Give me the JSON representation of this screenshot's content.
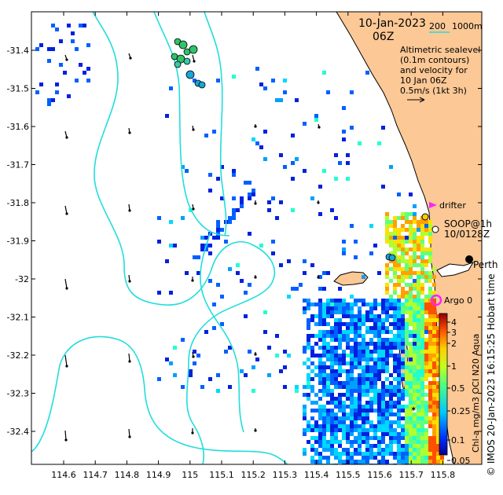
{
  "header": {
    "date": "10-Jan-2023",
    "hour": "06Z",
    "depth_contour_label": "200",
    "depth_contour_label_2": "1000m"
  },
  "legend_text": {
    "line1": "Altimetric sealevel",
    "line2": "(0.1m contours)",
    "line3": "and velocity for",
    "line4": "10 Jan 06Z",
    "line5": "0.5m/s (1kt 3h)"
  },
  "markers": {
    "drifter_label": "drifter",
    "float_label_1": "SOOP@1h",
    "float_label_2": "10/0128Z",
    "perth_label": "Perth",
    "argo_label": "Argo 0"
  },
  "colorbar": {
    "label": "Chl-a mg/m3 OCI N20 Aqua",
    "ticks": [
      "4",
      "3",
      "2",
      "1",
      "0.5",
      "0.25",
      "0.1",
      "0.05"
    ]
  },
  "credit": "© IMOS 20-Jan-2023 16:15:25 Hobart time",
  "axes": {
    "lat_ticks": [
      "-31.4",
      "-31.5",
      "-31.6",
      "-31.7",
      "-31.8",
      "-31.9",
      "-32",
      "-32.1",
      "-32.2",
      "-32.3",
      "-32.4"
    ],
    "lon_ticks": [
      "114.6",
      "114.7",
      "114.8",
      "114.9",
      "115",
      "115.1",
      "115.2",
      "115.3",
      "115.4",
      "115.5",
      "115.6",
      "115.7",
      "115.8"
    ]
  },
  "colors": {
    "land": "#fbc896",
    "contour": "#22dddd",
    "drifter": "#ff22ff",
    "argo": "#ff22ff"
  }
}
